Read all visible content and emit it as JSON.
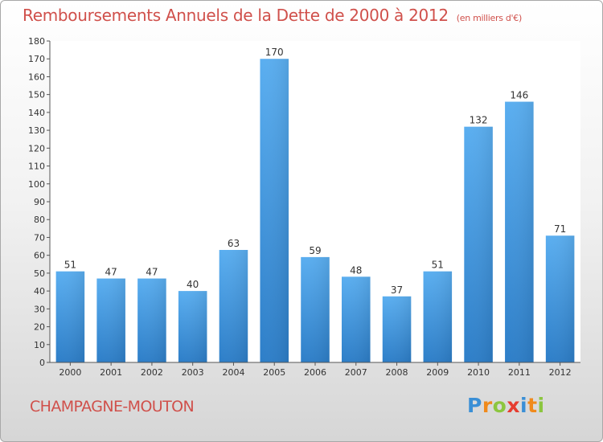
{
  "chart_data": {
    "type": "bar",
    "title": "Remboursements Annuels de la Dette de 2000 à 2012",
    "unit_label": "(en milliers d'€)",
    "categories": [
      "2000",
      "2001",
      "2002",
      "2003",
      "2004",
      "2005",
      "2006",
      "2007",
      "2008",
      "2009",
      "2010",
      "2011",
      "2012"
    ],
    "values": [
      51,
      47,
      47,
      40,
      63,
      170,
      59,
      48,
      37,
      51,
      132,
      146,
      71
    ],
    "ylim": [
      0,
      180
    ],
    "ytick_step": 10,
    "grid": false,
    "bar_color": "#4a9de0"
  },
  "footer": {
    "city": "CHAMPAGNE-MOUTON",
    "brand_letters": [
      {
        "ch": "P",
        "color": "#3a8fd6"
      },
      {
        "ch": "r",
        "color": "#f08a1c"
      },
      {
        "ch": "o",
        "color": "#8cc63f"
      },
      {
        "ch": "x",
        "color": "#e63c2f"
      },
      {
        "ch": "i",
        "color": "#3a8fd6"
      },
      {
        "ch": "t",
        "color": "#f08a1c"
      },
      {
        "ch": "i",
        "color": "#8cc63f"
      }
    ]
  }
}
